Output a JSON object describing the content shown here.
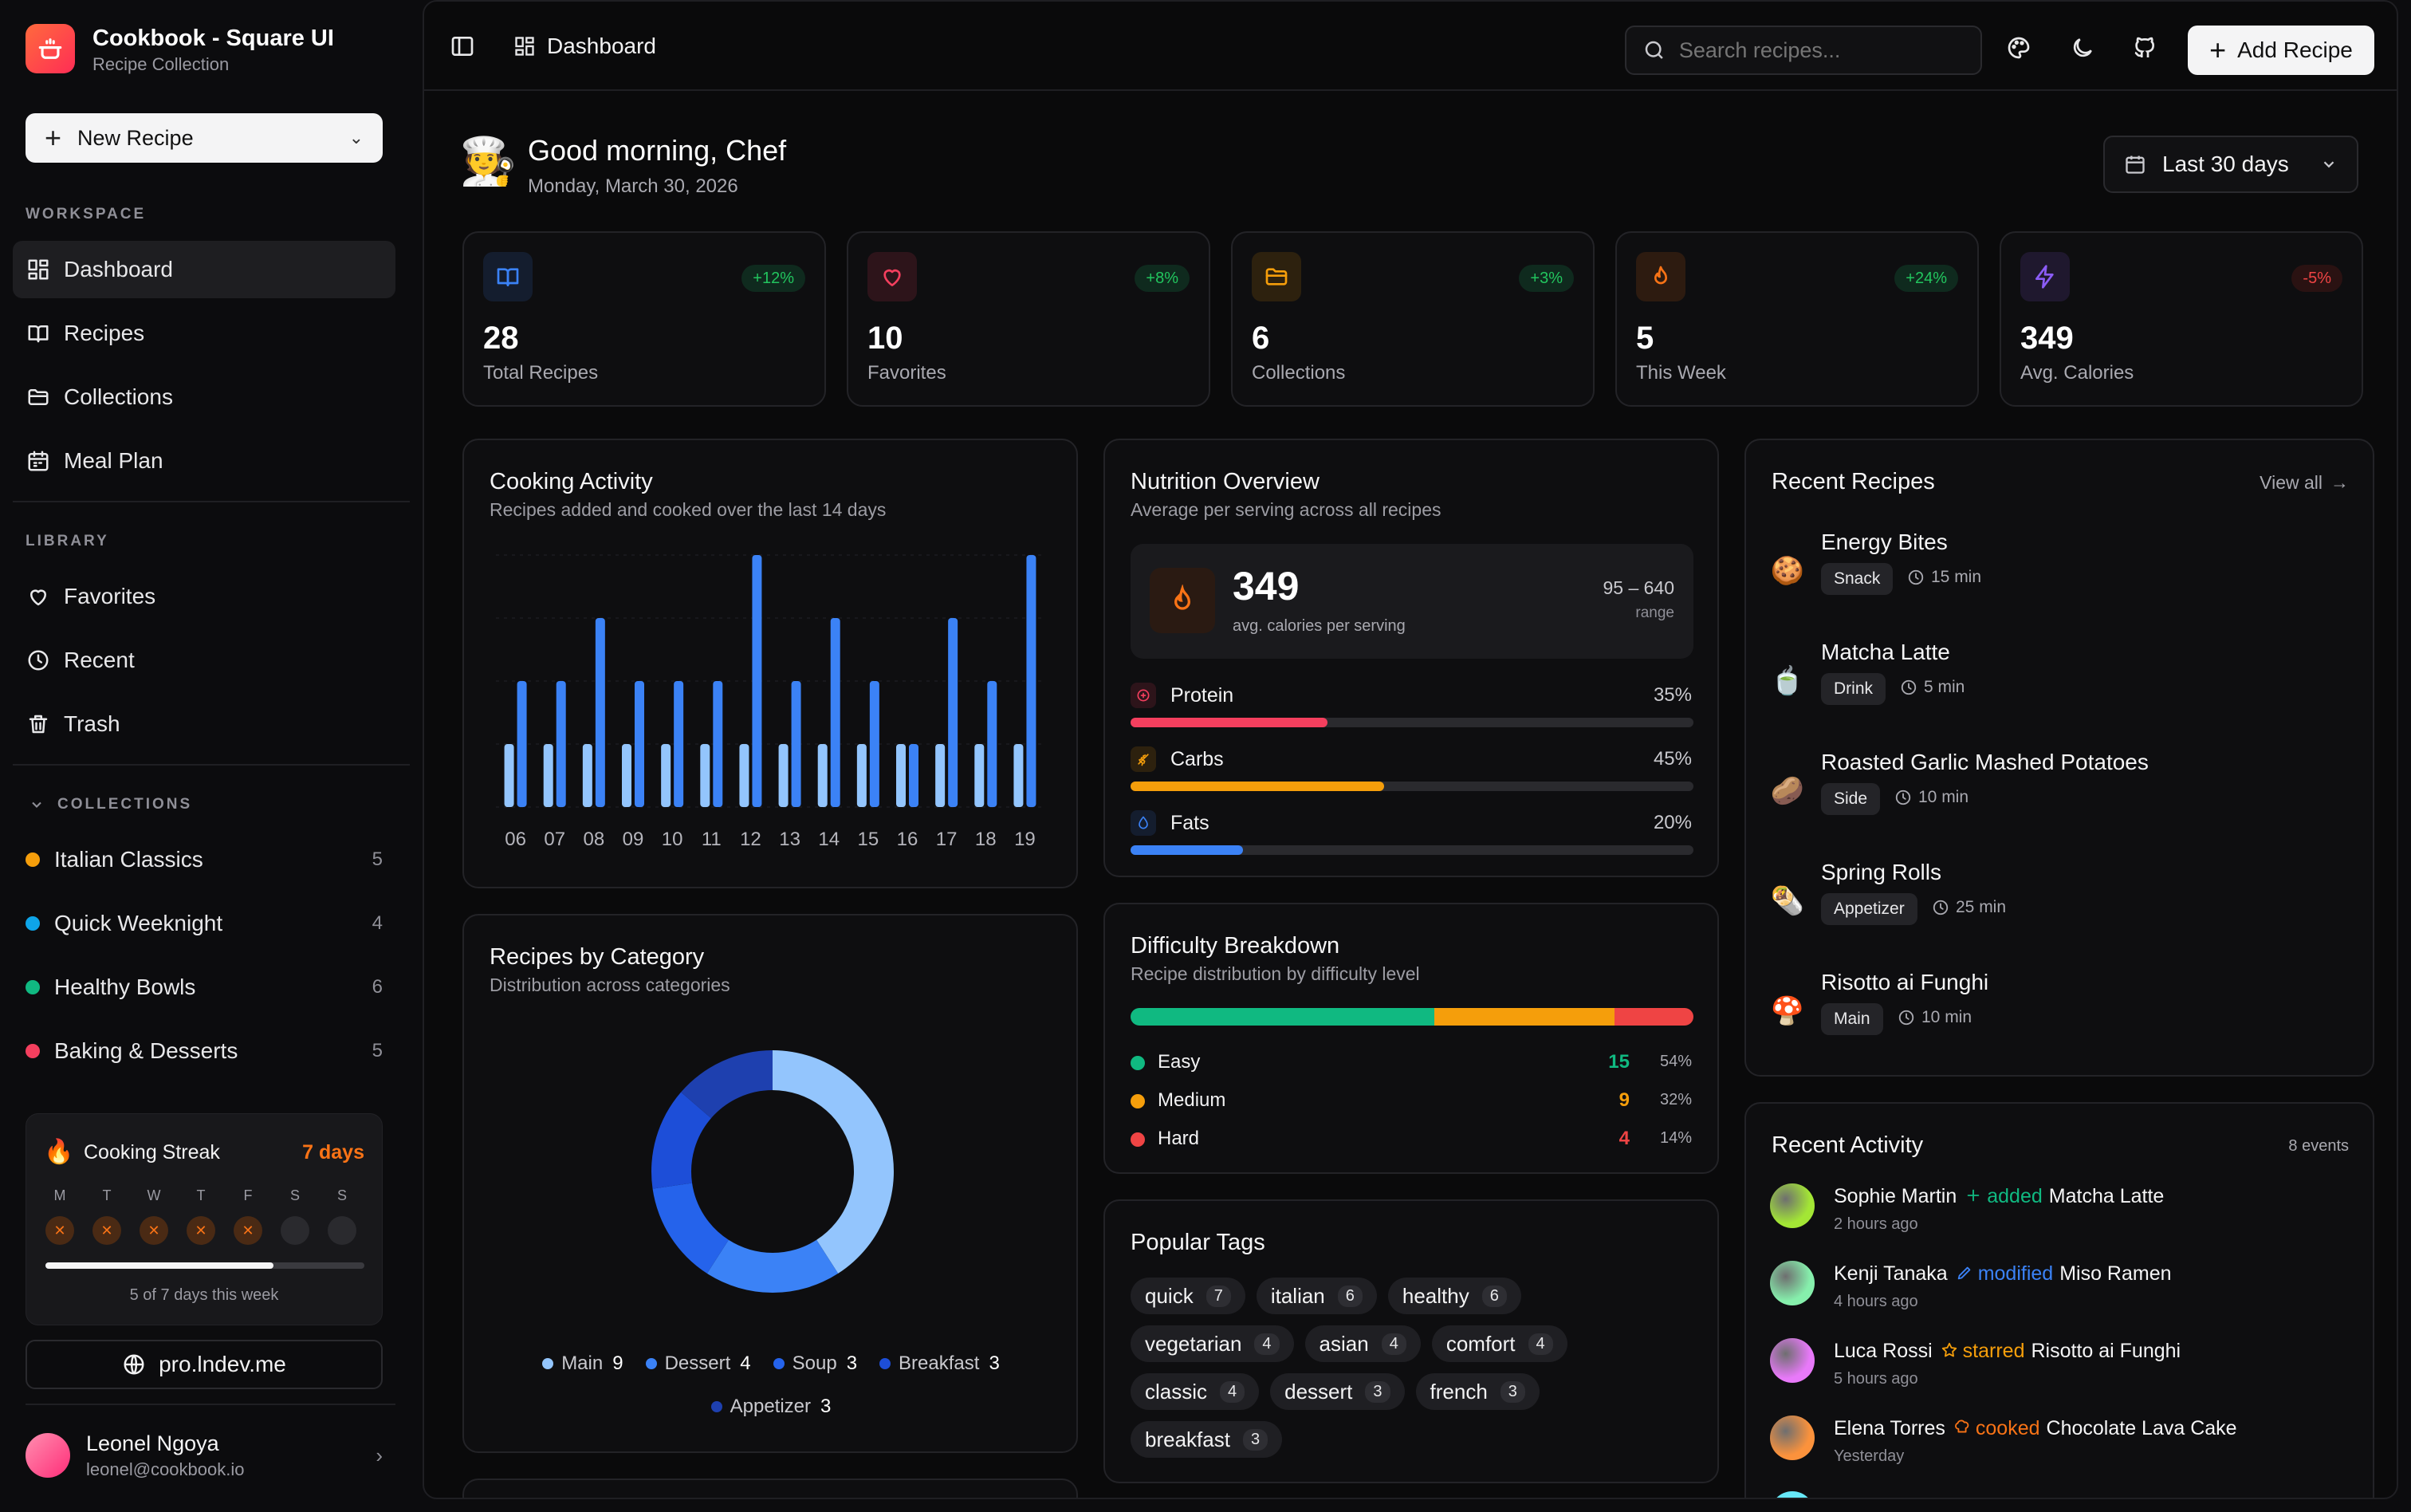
{
  "app": {
    "title": "Cookbook - Square UI",
    "subtitle": "Recipe Collection"
  },
  "sidebar": {
    "new_recipe_label": "New Recipe",
    "workspace_label": "WORKSPACE",
    "workspace_items": [
      {
        "label": "Dashboard",
        "icon": "grid-icon",
        "active": true
      },
      {
        "label": "Recipes",
        "icon": "book-open-icon"
      },
      {
        "label": "Collections",
        "icon": "folder-icon"
      },
      {
        "label": "Meal Plan",
        "icon": "calendar-icon"
      }
    ],
    "library_label": "LIBRARY",
    "library_items": [
      {
        "label": "Favorites",
        "icon": "heart-icon"
      },
      {
        "label": "Recent",
        "icon": "clock-icon"
      },
      {
        "label": "Trash",
        "icon": "trash-icon"
      }
    ],
    "collections_label": "COLLECTIONS",
    "collections": [
      {
        "label": "Italian Classics",
        "count": "5",
        "color": "#f59e0b"
      },
      {
        "label": "Quick Weeknight",
        "count": "4",
        "color": "#0ea5e9"
      },
      {
        "label": "Healthy Bowls",
        "count": "6",
        "color": "#10b981"
      },
      {
        "label": "Baking & Desserts",
        "count": "5",
        "color": "#f43f5e"
      }
    ],
    "streak": {
      "title": "Cooking Streak",
      "days_label": "7 days",
      "weekdays": [
        "M",
        "T",
        "W",
        "T",
        "F",
        "S",
        "S"
      ],
      "cooked": [
        true,
        true,
        true,
        true,
        true,
        false,
        false
      ],
      "progress": 0.714,
      "summary": "5 of 7 days this week"
    },
    "pro_link": "pro.lndev.me",
    "user": {
      "name": "Leonel Ngoya",
      "email": "leonel@cookbook.io"
    }
  },
  "topbar": {
    "breadcrumb": "Dashboard",
    "search_placeholder": "Search recipes...",
    "add_recipe_label": "Add Recipe"
  },
  "greeting": {
    "title": "Good morning, Chef",
    "date": "Monday, March 30, 2026",
    "range_label": "Last 30 days"
  },
  "stats": [
    {
      "value": "28",
      "label": "Total Recipes",
      "change": "+12%",
      "icon": "book-open-icon",
      "color": "#3b82f6",
      "positive": true
    },
    {
      "value": "10",
      "label": "Favorites",
      "change": "+8%",
      "icon": "heart-icon",
      "color": "#f43f5e",
      "positive": true
    },
    {
      "value": "6",
      "label": "Collections",
      "change": "+3%",
      "icon": "folder-icon",
      "color": "#f59e0b",
      "positive": true
    },
    {
      "value": "5",
      "label": "This Week",
      "change": "+24%",
      "icon": "flame-icon",
      "color": "#f97316",
      "positive": true
    },
    {
      "value": "349",
      "label": "Avg. Calories",
      "change": "-5%",
      "icon": "bolt-icon",
      "color": "#8b5cf6",
      "positive": false
    }
  ],
  "cooking_activity": {
    "title": "Cooking Activity",
    "subtitle": "Recipes added and cooked over the last 14 days",
    "chart_data": {
      "type": "bar",
      "categories": [
        "06",
        "07",
        "08",
        "09",
        "10",
        "11",
        "12",
        "13",
        "14",
        "15",
        "16",
        "17",
        "18",
        "19"
      ],
      "series": [
        {
          "values": [
            1,
            1,
            1,
            1,
            1,
            1,
            1,
            1,
            1,
            1,
            1,
            1,
            1,
            1
          ],
          "color": "#93c5fd"
        },
        {
          "values": [
            2,
            2,
            3,
            2,
            2,
            2,
            4,
            2,
            3,
            2,
            1,
            3,
            2,
            4
          ],
          "color": "#3b82f6"
        }
      ],
      "ylim": [
        0,
        4
      ]
    }
  },
  "nutrition": {
    "title": "Nutrition Overview",
    "subtitle": "Average per serving across all recipes",
    "calories": "349",
    "calories_label": "avg. calories per serving",
    "range": "95 – 640",
    "range_label": "range",
    "macros": [
      {
        "label": "Protein",
        "percent": "35%",
        "value": 0.35,
        "color": "#f43f5e",
        "icon": "protein-icon"
      },
      {
        "label": "Carbs",
        "percent": "45%",
        "value": 0.45,
        "color": "#f59e0b",
        "icon": "wheat-icon"
      },
      {
        "label": "Fats",
        "percent": "20%",
        "value": 0.2,
        "color": "#3b82f6",
        "icon": "droplet-icon"
      }
    ]
  },
  "recent_recipes": {
    "title": "Recent Recipes",
    "view_all": "View all",
    "items": [
      {
        "emoji": "🍪",
        "name": "Energy Bites",
        "category": "Snack",
        "time": "15 min"
      },
      {
        "emoji": "🍵",
        "name": "Matcha Latte",
        "category": "Drink",
        "time": "5 min"
      },
      {
        "emoji": "🥔",
        "name": "Roasted Garlic Mashed Potatoes",
        "category": "Side",
        "time": "10 min"
      },
      {
        "emoji": "🌯",
        "name": "Spring Rolls",
        "category": "Appetizer",
        "time": "25 min"
      },
      {
        "emoji": "🍄",
        "name": "Risotto ai Funghi",
        "category": "Main",
        "time": "10 min"
      }
    ]
  },
  "categories": {
    "title": "Recipes by Category",
    "subtitle": "Distribution across categories",
    "chart_data": {
      "type": "pie",
      "categories": [
        "Main",
        "Dessert",
        "Soup",
        "Breakfast",
        "Appetizer"
      ],
      "values": [
        9,
        4,
        3,
        3,
        3
      ],
      "colors": [
        "#93c5fd",
        "#3b82f6",
        "#2563eb",
        "#1d4ed8",
        "#1e40af"
      ]
    }
  },
  "difficulty": {
    "title": "Difficulty Breakdown",
    "subtitle": "Recipe distribution by difficulty level",
    "levels": [
      {
        "label": "Easy",
        "count": "15",
        "percent": "54%",
        "value": 0.54,
        "color": "#10b981"
      },
      {
        "label": "Medium",
        "count": "9",
        "percent": "32%",
        "value": 0.32,
        "color": "#f59e0b"
      },
      {
        "label": "Hard",
        "count": "4",
        "percent": "14%",
        "value": 0.14,
        "color": "#ef4444"
      }
    ]
  },
  "tags": {
    "title": "Popular Tags",
    "items": [
      {
        "label": "quick",
        "count": "7"
      },
      {
        "label": "italian",
        "count": "6"
      },
      {
        "label": "healthy",
        "count": "6"
      },
      {
        "label": "vegetarian",
        "count": "4"
      },
      {
        "label": "asian",
        "count": "4"
      },
      {
        "label": "comfort",
        "count": "4"
      },
      {
        "label": "classic",
        "count": "4"
      },
      {
        "label": "dessert",
        "count": "3"
      },
      {
        "label": "french",
        "count": "3"
      },
      {
        "label": "breakfast",
        "count": "3"
      }
    ]
  },
  "activity": {
    "title": "Recent Activity",
    "count_label": "8 events",
    "items": [
      {
        "user": "Sophie Martin",
        "action": "added",
        "target": "Matcha Latte",
        "when": "2 hours ago",
        "color": "#10b981",
        "icon": "plus-icon",
        "avatar": "#a3e635"
      },
      {
        "user": "Kenji Tanaka",
        "action": "modified",
        "target": "Miso Ramen",
        "when": "4 hours ago",
        "color": "#3b82f6",
        "icon": "pencil-icon",
        "avatar": "#86efac"
      },
      {
        "user": "Luca Rossi",
        "action": "starred",
        "target": "Risotto ai Funghi",
        "when": "5 hours ago",
        "color": "#f59e0b",
        "icon": "star-icon",
        "avatar": "#e879f9"
      },
      {
        "user": "Elena Torres",
        "action": "cooked",
        "target": "Chocolate Lava Cake",
        "when": "Yesterday",
        "color": "#f97316",
        "icon": "chef-hat-icon",
        "avatar": "#fb923c"
      }
    ]
  }
}
